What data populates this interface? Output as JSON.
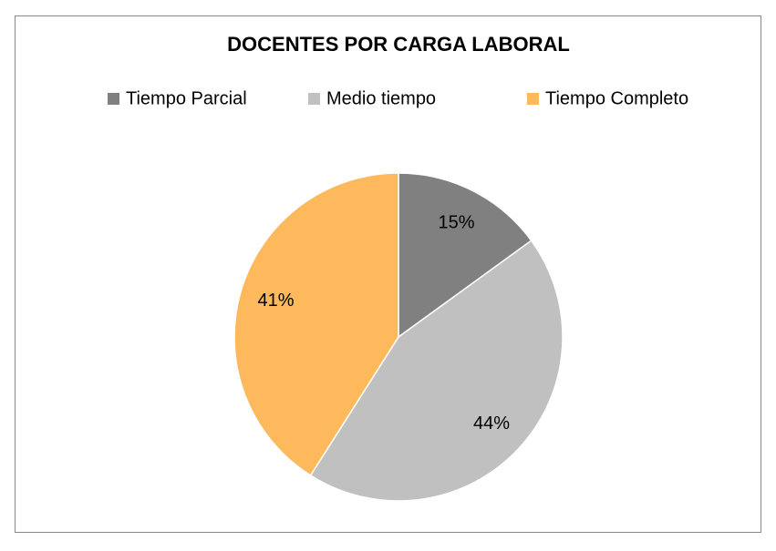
{
  "chart_data": {
    "type": "pie",
    "title": "DOCENTES POR CARGA LABORAL",
    "categories": [
      "Tiempo Parcial",
      "Medio tiempo",
      "Tiempo Completo"
    ],
    "values": [
      15,
      44,
      41
    ],
    "value_labels": [
      "15%",
      "44%",
      "41%"
    ],
    "colors": [
      "#808080",
      "#c0c0c0",
      "#fdb95b"
    ],
    "legend": "top"
  }
}
